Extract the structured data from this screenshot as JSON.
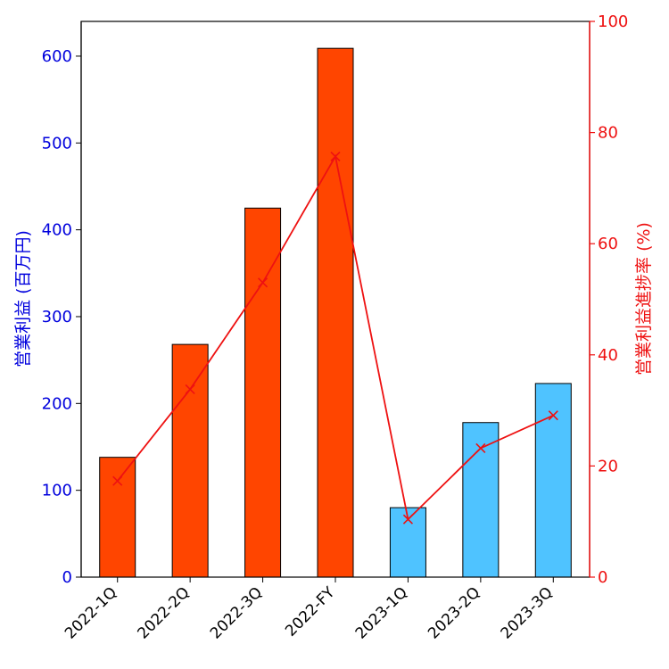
{
  "chart_data": {
    "type": "bar+line",
    "categories": [
      "2022-1Q",
      "2022-2Q",
      "2022-3Q",
      "2022-FY",
      "2023-1Q",
      "2023-2Q",
      "2023-3Q"
    ],
    "bar_series": {
      "name": "営業利益 (百万円)",
      "values": [
        138,
        268,
        425,
        609,
        80,
        178,
        223
      ],
      "colors": [
        "#ff4500",
        "#ff4500",
        "#ff4500",
        "#ff4500",
        "#4fc3ff",
        "#4fc3ff",
        "#4fc3ff"
      ],
      "axis": "left"
    },
    "line_series": {
      "name": "営業利益進捗率 (%)",
      "values": [
        17.3,
        33.8,
        53.0,
        75.7,
        10.4,
        23.2,
        29.1
      ],
      "color": "#ee1111",
      "marker": "x",
      "axis": "right"
    },
    "ylabel_left": "営業利益 (百万円)",
    "ylabel_right": "営業利益進捗率 (%)",
    "ylim_left": [
      0,
      640
    ],
    "yticks_left": [
      0,
      100,
      200,
      300,
      400,
      500,
      600
    ],
    "ylim_right": [
      0,
      100
    ],
    "yticks_right": [
      0,
      20,
      40,
      60,
      80,
      100
    ],
    "left_axis_color": "#0000dd",
    "right_axis_color": "#ee1111",
    "grid": false
  }
}
